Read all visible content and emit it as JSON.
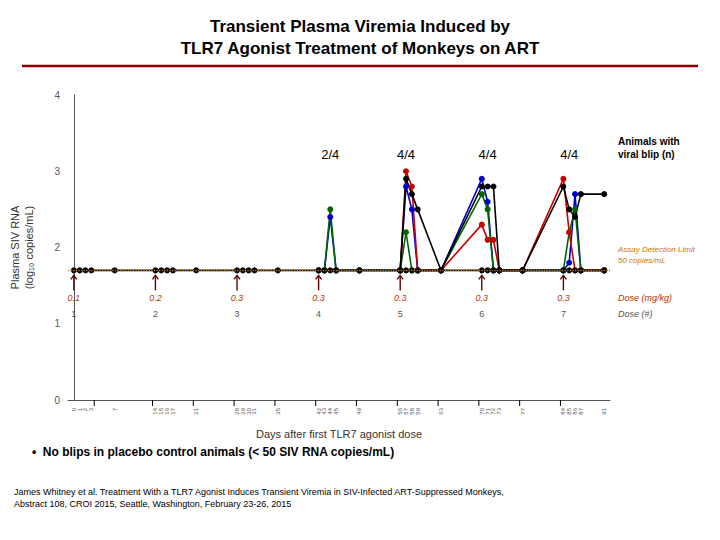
{
  "chart_data": {
    "type": "line",
    "title": "Transient Plasma Viremia Induced by\nTLR7 Agonist Treatment of Monkeys on ART",
    "x_label": "Days after first TLR7 agonist dose",
    "y_label": "Plasma SIV RNA\n(log₁₀ copies/mL)",
    "xlim": [
      -1,
      92
    ],
    "xticks": [
      0,
      1,
      2,
      3,
      7,
      14,
      15,
      16,
      17,
      21,
      28,
      29,
      30,
      31,
      35,
      42,
      43,
      44,
      45,
      49,
      56,
      57,
      58,
      59,
      63,
      70,
      71,
      72,
      73,
      77,
      84,
      85,
      86,
      87,
      91
    ],
    "ylim": [
      0,
      4
    ],
    "yticks": [
      0,
      1,
      2,
      3,
      4
    ],
    "grid": false,
    "marker": "circle",
    "series": [
      {
        "color": "#000000",
        "x": [
          0,
          1,
          2,
          3,
          7,
          14,
          15,
          16,
          17,
          21,
          28,
          29,
          30,
          31,
          35,
          42,
          43,
          44,
          45,
          49,
          56,
          57,
          58,
          59,
          63,
          70,
          71,
          72,
          73,
          77,
          84,
          85,
          86,
          87,
          91
        ],
        "values": [
          1.7,
          1.7,
          1.7,
          1.7,
          1.7,
          1.7,
          1.7,
          1.7,
          1.7,
          1.7,
          1.7,
          1.7,
          1.7,
          1.7,
          1.7,
          1.7,
          1.7,
          1.7,
          1.7,
          1.7,
          1.7,
          1.7,
          1.7,
          1.7,
          1.7,
          1.7,
          1.7,
          1.7,
          1.7,
          1.7,
          1.7,
          1.7,
          1.7,
          1.7,
          1.7
        ]
      },
      {
        "color": "#0000cc",
        "x": [
          42,
          43,
          44,
          45,
          49,
          56,
          57,
          58,
          59,
          63,
          70,
          71,
          72,
          73,
          77,
          84,
          85,
          86,
          87,
          91
        ],
        "values": [
          1.7,
          1.7,
          2.4,
          1.7,
          1.7,
          1.7,
          2.8,
          2.5,
          1.7,
          1.7,
          2.9,
          2.6,
          1.7,
          1.7,
          1.7,
          1.7,
          1.8,
          2.7,
          1.7,
          1.7
        ]
      },
      {
        "color": "#006600",
        "x": [
          42,
          43,
          44,
          45,
          49,
          56,
          57,
          58,
          59,
          63,
          70,
          71,
          72,
          73,
          77,
          84,
          85,
          86,
          87,
          91
        ],
        "values": [
          1.7,
          1.7,
          2.5,
          1.7,
          1.7,
          1.7,
          2.2,
          1.7,
          1.7,
          1.7,
          2.7,
          2.5,
          1.7,
          1.7,
          1.7,
          1.7,
          2.2,
          2.5,
          1.7,
          1.7
        ]
      },
      {
        "color": "#cc0000",
        "x": [
          56,
          57,
          58,
          59,
          63,
          70,
          71,
          72,
          73,
          77,
          84,
          85,
          86,
          87,
          91
        ],
        "values": [
          1.7,
          3.0,
          2.8,
          1.7,
          1.7,
          2.3,
          2.1,
          2.1,
          1.7,
          1.7,
          2.9,
          2.2,
          1.7,
          1.7,
          1.7
        ]
      },
      {
        "color": "#000000",
        "x": [
          56,
          57,
          58,
          59,
          63,
          70,
          71,
          72,
          73,
          77,
          84,
          85,
          86,
          87,
          91
        ],
        "values": [
          1.7,
          2.9,
          2.7,
          2.5,
          1.7,
          2.8,
          2.8,
          2.8,
          1.7,
          1.7,
          2.8,
          2.5,
          2.4,
          2.7,
          2.7
        ]
      }
    ],
    "detection_limit": {
      "y": 1.7,
      "label": "Assay Detection Limit\n50 copies/mL",
      "color": "#cc7700",
      "line_style": "dotted"
    },
    "doses": {
      "x": [
        0,
        14,
        28,
        42,
        56,
        70,
        84
      ],
      "mg_per_kg": [
        0.1,
        0.2,
        0.3,
        0.3,
        0.3,
        0.3,
        0.3
      ],
      "numbers": [
        1,
        2,
        3,
        4,
        5,
        6,
        7
      ],
      "mg_label": "Dose (mg/kg)",
      "number_label": "Dose (#)",
      "mg_color": "#bb3300",
      "number_color": "#555555",
      "arrow_color": "#660000"
    },
    "blips": {
      "x": [
        44,
        57,
        71,
        85
      ],
      "labels": [
        "2/4",
        "4/4",
        "4/4",
        "4/4"
      ],
      "title": "Animals with\nviral blip (n)"
    },
    "separators": [
      3.5,
      13.5,
      20.5,
      27.5,
      34.5,
      41.5,
      48.5,
      55.5,
      62.5,
      69.5,
      76.5,
      83.5
    ],
    "title_rule_color": "#8B0000",
    "footnote": "•  No blips in placebo control animals (< 50 SIV RNA copies/mL)",
    "citation": "James Whitney et al. Treatment With a TLR7 Agonist Induces Transient Viremia in SIV-Infected ART-Suppressed Monkeys,\nAbstract 108, CROI 2015, Seattle, Washington, February 23-26, 2015"
  }
}
